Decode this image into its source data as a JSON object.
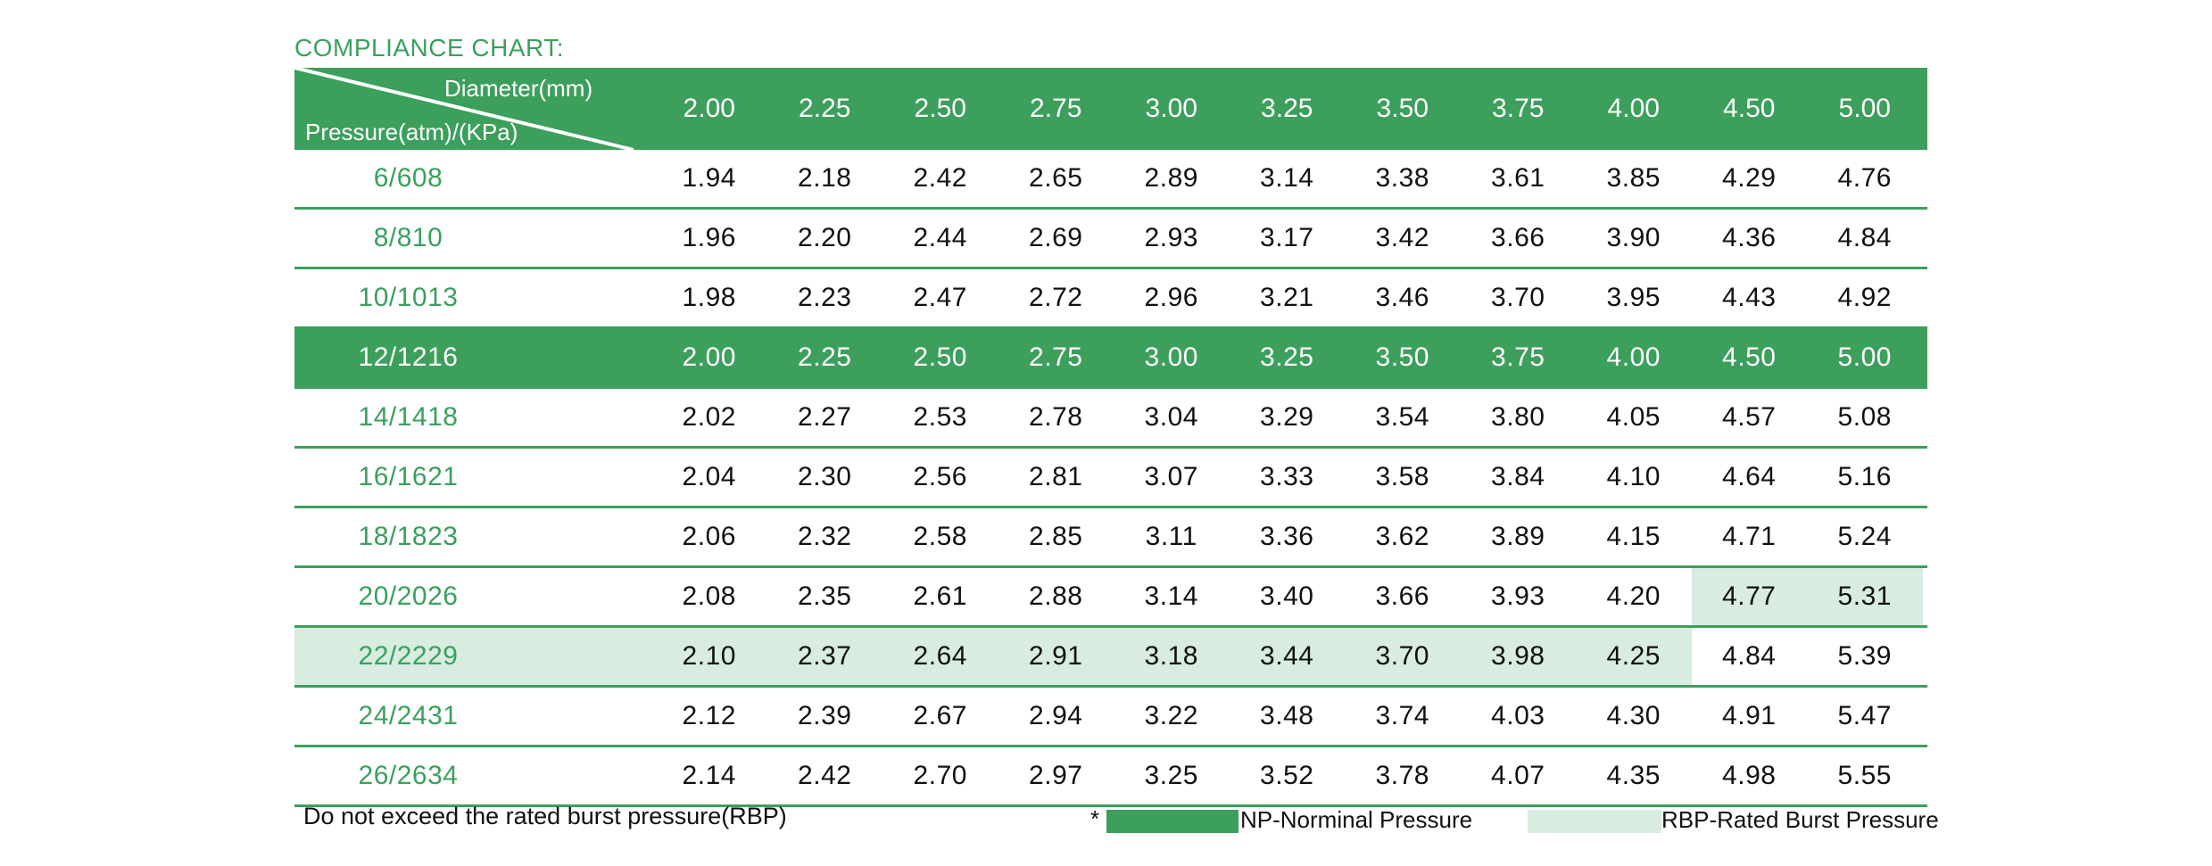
{
  "title": "COMPLIANCE CHART:",
  "header": {
    "col_axis_label": "Diameter(mm)",
    "row_axis_label": "Pressure(atm)/(KPa)",
    "diameters": [
      "2.00",
      "2.25",
      "2.50",
      "2.75",
      "3.00",
      "3.25",
      "3.50",
      "3.75",
      "4.00",
      "4.50",
      "5.00"
    ]
  },
  "rows": [
    {
      "pressure": "6/608",
      "values": [
        "1.94",
        "2.18",
        "2.42",
        "2.65",
        "2.89",
        "3.14",
        "3.38",
        "3.61",
        "3.85",
        "4.29",
        "4.76"
      ],
      "type": "normal"
    },
    {
      "pressure": "8/810",
      "values": [
        "1.96",
        "2.20",
        "2.44",
        "2.69",
        "2.93",
        "3.17",
        "3.42",
        "3.66",
        "3.90",
        "4.36",
        "4.84"
      ],
      "type": "normal"
    },
    {
      "pressure": "10/1013",
      "values": [
        "1.98",
        "2.23",
        "2.47",
        "2.72",
        "2.96",
        "3.21",
        "3.46",
        "3.70",
        "3.95",
        "4.43",
        "4.92"
      ],
      "type": "normal"
    },
    {
      "pressure": "12/1216",
      "values": [
        "2.00",
        "2.25",
        "2.50",
        "2.75",
        "3.00",
        "3.25",
        "3.50",
        "3.75",
        "4.00",
        "4.50",
        "5.00"
      ],
      "type": "np"
    },
    {
      "pressure": "14/1418",
      "values": [
        "2.02",
        "2.27",
        "2.53",
        "2.78",
        "3.04",
        "3.29",
        "3.54",
        "3.80",
        "4.05",
        "4.57",
        "5.08"
      ],
      "type": "normal"
    },
    {
      "pressure": "16/1621",
      "values": [
        "2.04",
        "2.30",
        "2.56",
        "2.81",
        "3.07",
        "3.33",
        "3.58",
        "3.84",
        "4.10",
        "4.64",
        "5.16"
      ],
      "type": "normal"
    },
    {
      "pressure": "18/1823",
      "values": [
        "2.06",
        "2.32",
        "2.58",
        "2.85",
        "3.11",
        "3.36",
        "3.62",
        "3.89",
        "4.15",
        "4.71",
        "5.24"
      ],
      "type": "normal"
    },
    {
      "pressure": "20/2026",
      "values": [
        "2.08",
        "2.35",
        "2.61",
        "2.88",
        "3.14",
        "3.40",
        "3.66",
        "3.93",
        "4.20",
        "4.77",
        "5.31"
      ],
      "type": "normal",
      "rbp_cols": [
        9,
        10
      ]
    },
    {
      "pressure": "22/2229",
      "values": [
        "2.10",
        "2.37",
        "2.64",
        "2.91",
        "3.18",
        "3.44",
        "3.70",
        "3.98",
        "4.25",
        "4.84",
        "5.39"
      ],
      "type": "normal",
      "rbp_cols": [
        0,
        1,
        2,
        3,
        4,
        5,
        6,
        7,
        8
      ],
      "rbp_label": true
    },
    {
      "pressure": "24/2431",
      "values": [
        "2.12",
        "2.39",
        "2.67",
        "2.94",
        "3.22",
        "3.48",
        "3.74",
        "4.03",
        "4.30",
        "4.91",
        "5.47"
      ],
      "type": "normal"
    },
    {
      "pressure": "26/2634",
      "values": [
        "2.14",
        "2.42",
        "2.70",
        "2.97",
        "3.25",
        "3.52",
        "3.78",
        "4.07",
        "4.35",
        "4.98",
        "5.55"
      ],
      "type": "normal"
    }
  ],
  "footer": {
    "note": "Do not exceed the rated burst pressure(RBP)",
    "legend_star": "*",
    "np_label": "NP-Norminal Pressure",
    "rbp_label": "RBP-Rated Burst Pressure"
  },
  "colors": {
    "np_green": "#3c9f5c",
    "rbp_light_green": "#d8ece0",
    "label_green": "#3aa05e"
  }
}
